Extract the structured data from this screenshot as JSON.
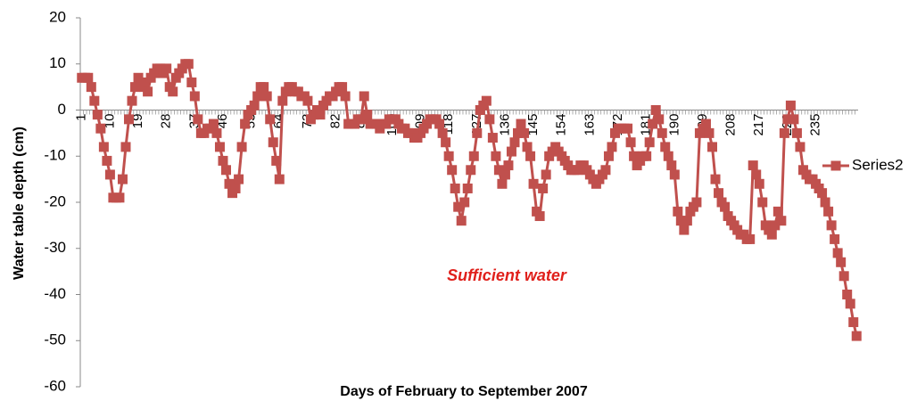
{
  "chart_data": {
    "type": "line",
    "y_axis_label": "Water table depth (cm)",
    "x_axis_label": "Days of February to September 2007",
    "annotation": "Sufficient water",
    "legend": "right",
    "grid": false,
    "ylim": [
      -60,
      20
    ],
    "yticks": [
      -60,
      -50,
      -40,
      -30,
      -20,
      -10,
      0,
      10,
      20
    ],
    "categories": [
      1,
      null,
      null,
      null,
      null,
      null,
      null,
      null,
      null,
      10,
      null,
      null,
      null,
      null,
      null,
      null,
      null,
      null,
      19,
      null,
      null,
      null,
      null,
      null,
      null,
      null,
      null,
      28,
      null,
      null,
      null,
      null,
      null,
      null,
      null,
      null,
      37,
      null,
      null,
      null,
      null,
      null,
      null,
      null,
      null,
      46,
      null,
      null,
      null,
      null,
      null,
      null,
      null,
      null,
      55,
      null,
      null,
      null,
      null,
      null,
      null,
      null,
      null,
      64,
      null,
      null,
      null,
      null,
      null,
      null,
      null,
      null,
      73,
      null,
      null,
      null,
      null,
      null,
      null,
      null,
      null,
      82,
      null,
      null,
      null,
      null,
      null,
      null,
      null,
      null,
      91,
      null,
      null,
      null,
      null,
      null,
      null,
      null,
      null,
      100,
      null,
      null,
      null,
      null,
      null,
      null,
      null,
      null,
      109,
      null,
      null,
      null,
      null,
      null,
      null,
      null,
      null,
      118,
      null,
      null,
      null,
      null,
      null,
      null,
      null,
      null,
      127,
      null,
      null,
      null,
      null,
      null,
      null,
      null,
      null,
      136,
      null,
      null,
      null,
      null,
      null,
      null,
      null,
      null,
      145,
      null,
      null,
      null,
      null,
      null,
      null,
      null,
      null,
      154,
      null,
      null,
      null,
      null,
      null,
      null,
      null,
      null,
      163,
      null,
      null,
      null,
      null,
      null,
      null,
      null,
      null,
      172,
      null,
      null,
      null,
      null,
      null,
      null,
      null,
      null,
      181,
      null,
      null,
      null,
      null,
      null,
      null,
      null,
      null,
      190,
      null,
      null,
      null,
      null,
      null,
      null,
      null,
      null,
      199,
      null,
      null,
      null,
      null,
      null,
      null,
      null,
      null,
      208,
      null,
      null,
      null,
      null,
      null,
      null,
      null,
      null,
      217,
      null,
      null,
      null,
      null,
      null,
      null,
      null,
      null,
      226,
      null,
      null,
      null,
      null,
      null,
      null,
      null,
      null,
      235,
      null,
      null,
      null,
      null,
      null,
      null,
      null,
      null,
      null,
      null,
      null,
      null,
      null
    ],
    "series": [
      {
        "name": "Series2",
        "color": "#c0504d",
        "values": [
          7,
          7,
          7,
          5,
          2,
          -1,
          -4,
          -8,
          -11,
          -14,
          -19,
          -19,
          -19,
          -15,
          -8,
          -2,
          2,
          5,
          7,
          6,
          5,
          4,
          7,
          8,
          9,
          9,
          8,
          9,
          5,
          4,
          7,
          8,
          9,
          10,
          10,
          6,
          3,
          -2,
          -5,
          -5,
          -4,
          -4,
          -3,
          -5,
          -8,
          -11,
          -13,
          -16,
          -18,
          -17,
          -15,
          -8,
          -3,
          -1,
          0,
          1,
          3,
          5,
          5,
          3,
          -2,
          -7,
          -11,
          -15,
          2,
          4,
          5,
          5,
          4,
          4,
          3,
          3,
          2,
          -2,
          -1,
          0,
          -1,
          1,
          2,
          3,
          3,
          4,
          5,
          5,
          3,
          -3,
          -3,
          -3,
          -2,
          -2,
          3,
          -1,
          -3,
          -3,
          -3,
          -4,
          -3,
          -3,
          -2,
          -2,
          -2,
          -3,
          -4,
          -4,
          -5,
          -5,
          -6,
          -6,
          -5,
          -4,
          -3,
          -2,
          -2,
          -2,
          -3,
          -5,
          -7,
          -10,
          -13,
          -17,
          -21,
          -24,
          -20,
          -17,
          -13,
          -10,
          -5,
          0,
          1,
          2,
          -2,
          -6,
          -10,
          -13,
          -16,
          -14,
          -12,
          -9,
          -7,
          -5,
          -3,
          -5,
          -8,
          -10,
          -16,
          -22,
          -23,
          -17,
          -14,
          -10,
          -9,
          -8,
          -9,
          -10,
          -11,
          -12,
          -13,
          -13,
          -13,
          -12,
          -12,
          -13,
          -14,
          -15,
          -16,
          -15,
          -14,
          -13,
          -10,
          -8,
          -5,
          -4,
          -4,
          -4,
          -4,
          -7,
          -10,
          -12,
          -11,
          -10,
          -10,
          -7,
          -3,
          0,
          -2,
          -5,
          -8,
          -10,
          -12,
          -14,
          -22,
          -24,
          -26,
          -24,
          -22,
          -21,
          -20,
          -5,
          -4,
          -3,
          -5,
          -8,
          -15,
          -18,
          -20,
          -21,
          -23,
          -24,
          -25,
          -26,
          -27,
          -27,
          -28,
          -28,
          -12,
          -14,
          -16,
          -20,
          -25,
          -26,
          -27,
          -25,
          -22,
          -24,
          -5,
          -2,
          1,
          -2,
          -5,
          -8,
          -13,
          -14,
          -15,
          -15,
          -16,
          -17,
          -18,
          -20,
          -22,
          -25,
          -28,
          -31,
          -33,
          -36,
          -40,
          -42,
          -46,
          -49
        ]
      }
    ]
  }
}
